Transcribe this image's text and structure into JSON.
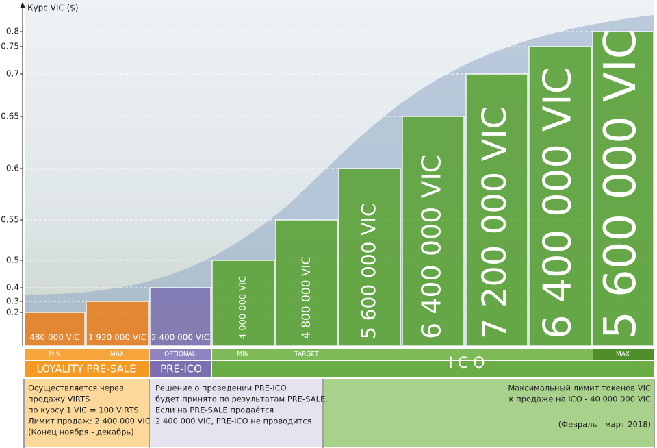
{
  "chart_data": {
    "type": "bar",
    "y_axis_label": "Курс VIC ($)",
    "yticks": [
      0.2,
      0.3,
      0.4,
      0.5,
      0.55,
      0.6,
      0.65,
      0.7,
      0.75,
      0.8
    ],
    "values": [
      0.2,
      0.3,
      0.4,
      0.5,
      0.55,
      0.6,
      0.65,
      0.7,
      0.75,
      0.8
    ],
    "bar_labels": [
      "480 000 VIC",
      "1 920 000 VIC",
      "2 400 000 VIC",
      "4 000 000 VIC",
      "4 800 000 VIC",
      "5 600 000 VIC",
      "6 400 000 VIC",
      "7 200 000 VIC",
      "6 400 000 VIC",
      "5 600 000 VIC"
    ],
    "colors": [
      "#ef7d14",
      "#ef7d14",
      "#7b6fb0",
      "#56a12a",
      "#56a12a",
      "#56a12a",
      "#56a12a",
      "#56a12a",
      "#56a12a",
      "#56a12a"
    ],
    "grid": true
  },
  "stages": [
    "MIN",
    "MAX",
    "OPTIONAL",
    "MIN",
    "TARGET",
    "MAX"
  ],
  "phases": {
    "loyality": {
      "title": "LOYALITY PRE-SALE",
      "lines": [
        "Осуществляется через",
        "продажу VIRTS",
        "по курсу 1 VIC = 100 VIRTS.",
        "Лимит продаж: 2 400 000 VIC",
        "(Конец ноября - декабрь)"
      ]
    },
    "preico": {
      "title": "PRE-ICO",
      "lines": [
        "Решение о проведении PRE-ICO",
        "будет принято по результатам PRE-SALE.",
        "Если на PRE-SALE продаётся",
        "2 400 000 VIC, PRE-ICO не проводится"
      ]
    },
    "ico": {
      "title": "I C O",
      "lines": [
        "Максимальный лимит токенов VIC",
        "к продаже на ICO - 40 000 000 VIC",
        "(Февраль - март 2018)"
      ]
    }
  }
}
